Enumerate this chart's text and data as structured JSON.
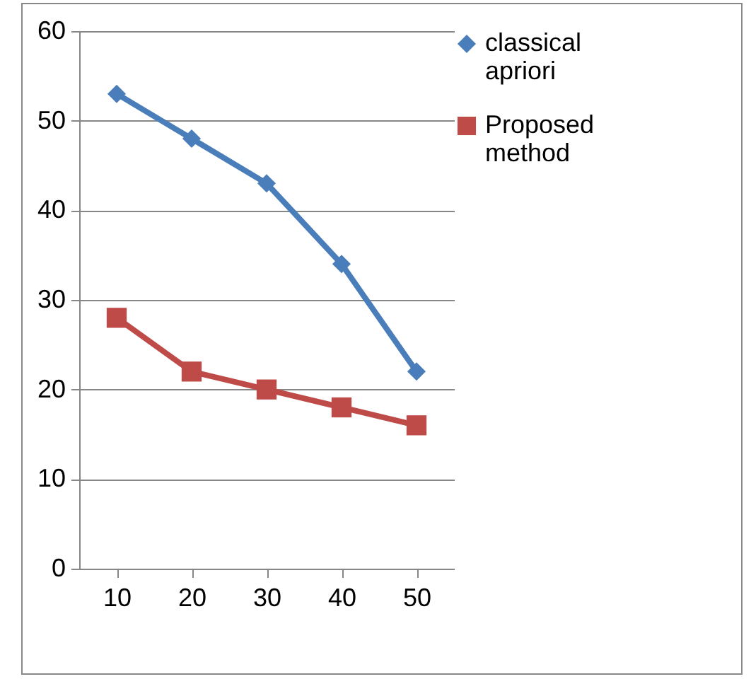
{
  "chart_data": {
    "type": "line",
    "categories": [
      "10",
      "20",
      "30",
      "40",
      "50"
    ],
    "series": [
      {
        "name": "classical apriori",
        "color": "#4a7ebb",
        "marker": "diamond",
        "values": [
          53,
          48,
          43,
          34,
          22
        ]
      },
      {
        "name": "Proposed method",
        "color": "#be4b48",
        "marker": "square",
        "values": [
          28,
          22,
          20,
          18,
          16
        ]
      }
    ],
    "ylim": [
      0,
      60
    ],
    "yticks": [
      0,
      10,
      20,
      30,
      40,
      50,
      60
    ],
    "grid": "y",
    "legend": "right",
    "line_style": "solid"
  }
}
